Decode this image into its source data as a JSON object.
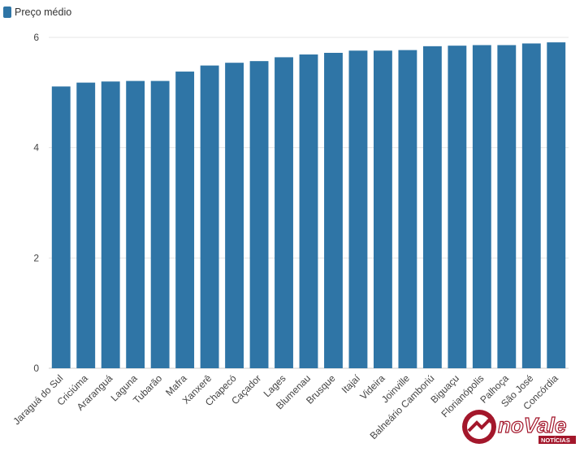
{
  "legend": {
    "label": "Preço médio"
  },
  "colors": {
    "bar": "#2f75a6",
    "grid": "#e6e6e6",
    "axis_text": "#444444",
    "brand_red": "#a3172b"
  },
  "watermark": {
    "brand": "noVale",
    "sub": "NOTÍCIAS"
  },
  "chart_data": {
    "type": "bar",
    "categories": [
      "Jaraguá do Sul",
      "Criciúma",
      "Araranguá",
      "Laguna",
      "Tubarão",
      "Mafra",
      "Xanxerê",
      "Chapecó",
      "Caçador",
      "Lages",
      "Blumenau",
      "Brusque",
      "Itajaí",
      "Videira",
      "Joinville",
      "Balneário Camboriú",
      "Biguaçu",
      "Florianópolis",
      "Palhoça",
      "São José",
      "Concórdia"
    ],
    "series": [
      {
        "name": "Preço médio",
        "values": [
          5.11,
          5.18,
          5.2,
          5.21,
          5.21,
          5.38,
          5.49,
          5.54,
          5.57,
          5.64,
          5.69,
          5.72,
          5.76,
          5.76,
          5.77,
          5.84,
          5.85,
          5.86,
          5.86,
          5.89,
          5.91
        ]
      }
    ],
    "yticks": [
      0,
      2,
      4,
      6
    ],
    "ylim": [
      0,
      6
    ],
    "grid": true,
    "legend_position": "top-left"
  }
}
